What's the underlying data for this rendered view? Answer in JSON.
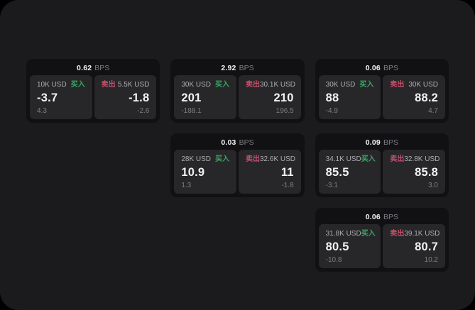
{
  "labels": {
    "buy": "买入",
    "sell": "卖出",
    "bps_unit": "BPS"
  },
  "colors": {
    "buy_green": "#3aa766",
    "sell_red": "#c74e6b",
    "window_bg": "#1b1b1d",
    "card_bg": "#111113",
    "cell_bg": "#272729",
    "value_white": "#f2f2f3",
    "muted_gray": "#7e7e83",
    "amount_gray": "#aeaeb2"
  },
  "cards": [
    {
      "col": 1,
      "bps": "0.62",
      "buy": {
        "amount": "10K USD",
        "price": "-3.7",
        "change": "4.3"
      },
      "sell": {
        "amount": "5.5K USD",
        "price": "-1.8",
        "change": "-2.6"
      }
    },
    {
      "col": 2,
      "bps": "2.92",
      "buy": {
        "amount": "30K USD",
        "price": "201",
        "change": "-188.1"
      },
      "sell": {
        "amount": "30.1K USD",
        "price": "210",
        "change": "196.5"
      }
    },
    {
      "col": 3,
      "bps": "0.06",
      "buy": {
        "amount": "30K USD",
        "price": "88",
        "change": "-4.9"
      },
      "sell": {
        "amount": "30K USD",
        "price": "88.2",
        "change": "4.7"
      }
    },
    {
      "col": 2,
      "bps": "0.03",
      "buy": {
        "amount": "28K USD",
        "price": "10.9",
        "change": "1.3"
      },
      "sell": {
        "amount": "32.6K USD",
        "price": "11",
        "change": "-1.8"
      }
    },
    {
      "col": 3,
      "bps": "0.09",
      "buy": {
        "amount": "34.1K USD",
        "price": "85.5",
        "change": "-3.1"
      },
      "sell": {
        "amount": "32.8K USD",
        "price": "85.8",
        "change": "3.0"
      }
    },
    {
      "col": 3,
      "bps": "0.06",
      "buy": {
        "amount": "31.8K USD",
        "price": "80.5",
        "change": "-10.8"
      },
      "sell": {
        "amount": "39.1K USD",
        "price": "80.7",
        "change": "10.2"
      }
    }
  ]
}
